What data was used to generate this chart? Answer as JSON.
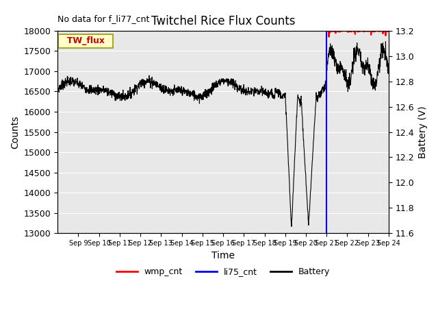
{
  "title": "Twitchel Rice Flux Counts",
  "no_data_text": "No data for f_li77_cnt",
  "ylabel_left": "Counts",
  "ylabel_right": "Battery (V)",
  "xlabel": "Time",
  "legend_box_label": "TW_flux",
  "ylim_left": [
    13000,
    18000
  ],
  "ylim_right": [
    11.6,
    13.2
  ],
  "yticks_left": [
    13000,
    13500,
    14000,
    14500,
    15000,
    15500,
    16000,
    16500,
    17000,
    17500,
    18000
  ],
  "yticks_right": [
    11.6,
    11.8,
    12.0,
    12.2,
    12.4,
    12.6,
    12.8,
    13.0,
    13.2
  ],
  "xtick_labels": [
    "Sep 9",
    "Sep 10",
    "Sep 11",
    "Sep 12",
    "Sep 13",
    "Sep 14",
    "Sep 15",
    "Sep 16",
    "Sep 17",
    "Sep 18",
    "Sep 19",
    "Sep 20",
    "Sep 21",
    "Sep 22",
    "Sep 23",
    "Sep 24"
  ],
  "bg_color": "#e8e8e8",
  "line_color_battery": "#000000",
  "line_color_wmp": "#ff0000",
  "line_color_li75": "#0000ff",
  "legend_entries": [
    "wmp_cnt",
    "li75_cnt",
    "Battery"
  ],
  "figsize": [
    6.4,
    4.8
  ],
  "dpi": 100
}
